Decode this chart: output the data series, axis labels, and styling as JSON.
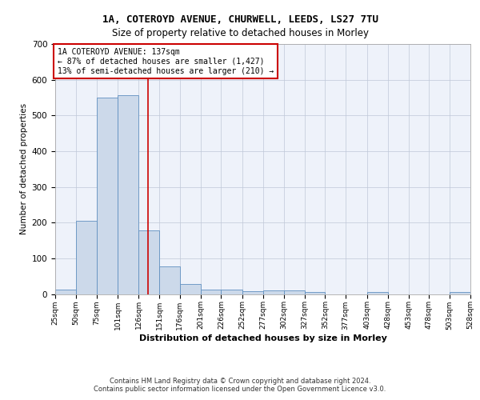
{
  "title_line1": "1A, COTEROYD AVENUE, CHURWELL, LEEDS, LS27 7TU",
  "title_line2": "Size of property relative to detached houses in Morley",
  "xlabel": "Distribution of detached houses by size in Morley",
  "ylabel": "Number of detached properties",
  "annotation_lines": [
    "1A COTEROYD AVENUE: 137sqm",
    "← 87% of detached houses are smaller (1,427)",
    "13% of semi-detached houses are larger (210) →"
  ],
  "footer_line1": "Contains HM Land Registry data © Crown copyright and database right 2024.",
  "footer_line2": "Contains public sector information licensed under the Open Government Licence v3.0.",
  "bar_color": "#ccd9ea",
  "bar_edge_color": "#6090c0",
  "vline_x": 137,
  "vline_color": "#cc0000",
  "ylim": [
    0,
    700
  ],
  "yticks": [
    0,
    100,
    200,
    300,
    400,
    500,
    600,
    700
  ],
  "bin_edges": [
    25,
    50,
    75,
    101,
    126,
    151,
    176,
    201,
    226,
    252,
    277,
    302,
    327,
    352,
    377,
    403,
    428,
    453,
    478,
    503,
    528
  ],
  "bin_labels": [
    "25sqm",
    "50sqm",
    "75sqm",
    "101sqm",
    "126sqm",
    "151sqm",
    "176sqm",
    "201sqm",
    "226sqm",
    "252sqm",
    "277sqm",
    "302sqm",
    "327sqm",
    "352sqm",
    "377sqm",
    "403sqm",
    "428sqm",
    "453sqm",
    "478sqm",
    "503sqm",
    "528sqm"
  ],
  "bar_heights": [
    12,
    204,
    551,
    557,
    178,
    77,
    28,
    12,
    12,
    8,
    9,
    9,
    5,
    0,
    0,
    5,
    0,
    0,
    0,
    5
  ],
  "annotation_box_color": "#ffffff",
  "annotation_box_edge": "#cc0000",
  "background_color": "#eef2fa",
  "grid_color": "#c0c8d8"
}
